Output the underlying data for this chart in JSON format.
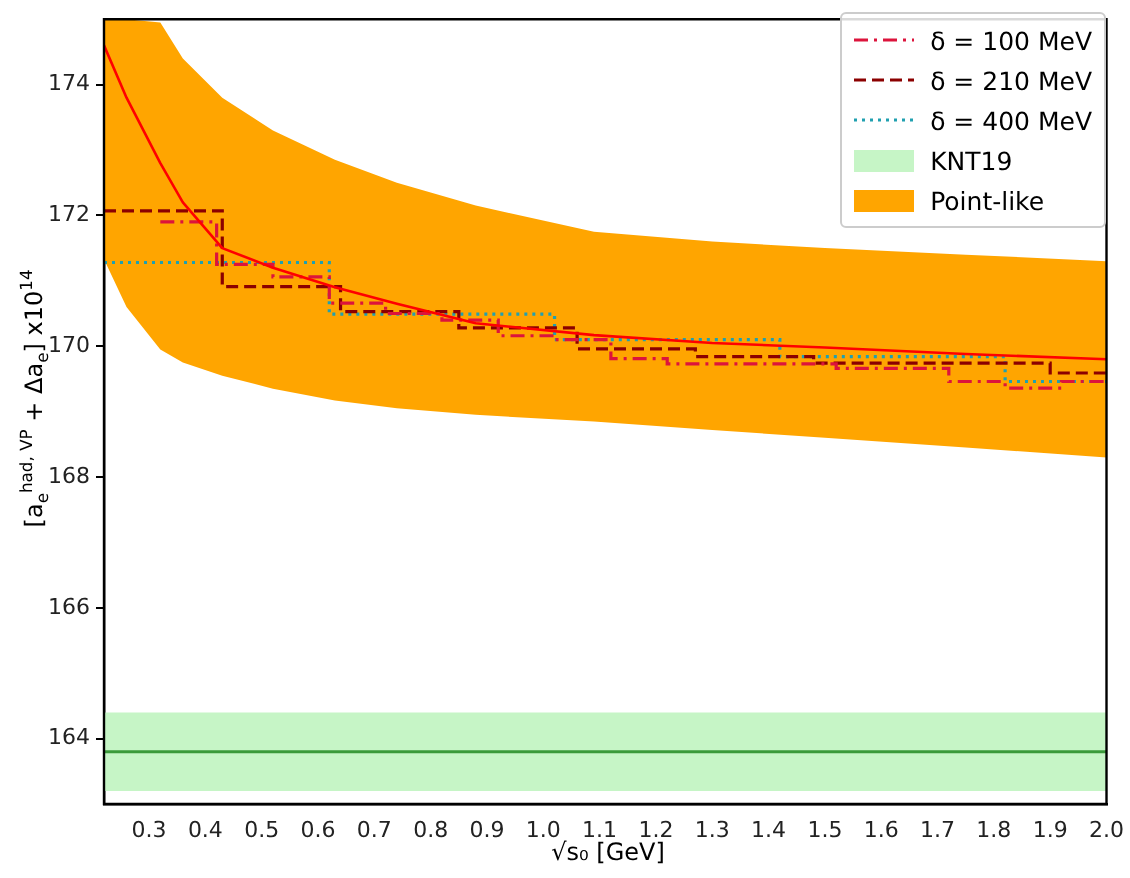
{
  "chart_data": {
    "type": "step",
    "xlabel": "√s₀ [GeV]",
    "ylabel": "[a$_{e}$$^{had, VP}$ + Δa$_{e}$] x10$^{14}$",
    "xlim": [
      0.22,
      2.0
    ],
    "ylim": [
      163,
      175
    ],
    "xticks": [
      0.3,
      0.4,
      0.5,
      0.6,
      0.7,
      0.8,
      0.9,
      {
        "value": 1,
        "label": "1.0"
      },
      1.1,
      1.2,
      1.3,
      1.4,
      1.5,
      1.6,
      1.7,
      1.8,
      1.9,
      {
        "value": 2,
        "label": "2.0"
      }
    ],
    "yticks": [
      164,
      166,
      168,
      170,
      172,
      174
    ],
    "grid": false,
    "legend": "top right",
    "series": [
      {
        "name": "Point-like",
        "type": "area",
        "color": "#ffa500",
        "x": [
          0.22,
          0.26,
          0.32,
          0.36,
          0.43,
          0.52,
          0.63,
          0.74,
          0.88,
          1.09,
          1.3,
          1.5,
          1.75,
          2.0
        ],
        "values": [
          null,
          null,
          null,
          null,
          null,
          null,
          null,
          null,
          null,
          null,
          null,
          null,
          null,
          null
        ],
        "lower": [
          171.33,
          170.6,
          169.95,
          169.75,
          169.55,
          169.35,
          169.17,
          169.05,
          168.95,
          168.85,
          168.72,
          168.6,
          168.45,
          168.3
        ],
        "upper": [
          175,
          175,
          174.95,
          174.4,
          173.8,
          173.3,
          172.85,
          172.5,
          172.15,
          171.75,
          171.6,
          171.5,
          171.4,
          171.3
        ]
      },
      {
        "type": "line",
        "color": "#ff0000",
        "line_style": "solid",
        "x": [
          0.22,
          0.26,
          0.32,
          0.36,
          0.43,
          0.52,
          0.63,
          0.74,
          0.88,
          1.09,
          1.3,
          1.5,
          1.75,
          2.0
        ],
        "values": [
          174.6,
          173.8,
          172.8,
          172.2,
          171.5,
          171.2,
          170.9,
          170.65,
          170.35,
          170.17,
          170.05,
          169.98,
          169.88,
          169.8
        ]
      },
      {
        "name": "δ = 100 MeV",
        "color": "#dc143c",
        "line_style": "dashdot",
        "x": [
          0.32,
          0.42,
          0.52,
          0.62,
          0.72,
          0.82,
          0.92,
          1.02,
          1.12,
          1.22,
          1.32,
          1.42,
          1.52,
          1.62,
          1.72,
          1.82,
          1.92,
          2.0
        ],
        "values": [
          171.9,
          171.25,
          171.06,
          170.66,
          170.5,
          170.4,
          170.16,
          170.1,
          169.81,
          169.73,
          169.73,
          169.73,
          169.66,
          169.66,
          169.46,
          169.36,
          169.46,
          169.46
        ]
      },
      {
        "name": "δ = 210 MeV",
        "color": "#8b0000",
        "line_style": "dashed",
        "x": [
          0.22,
          0.43,
          0.64,
          0.85,
          1.06,
          1.27,
          1.48,
          1.69,
          1.9,
          2.0
        ],
        "values": [
          172.07,
          170.91,
          170.53,
          170.28,
          169.96,
          169.84,
          169.74,
          169.74,
          169.59,
          169.59
        ]
      },
      {
        "name": "δ = 400 MeV",
        "color": "#20a0b0",
        "line_style": "dotted",
        "x": [
          0.22,
          0.62,
          1.02,
          1.42,
          1.82,
          2.0
        ],
        "values": [
          171.28,
          170.49,
          170.1,
          169.84,
          169.46,
          169.46
        ]
      }
    ],
    "bands": [
      {
        "axis": "y",
        "from": 163.2,
        "to": 164.4,
        "label": "KNT19",
        "color": "#c6f5c6"
      }
    ],
    "ref_lines": [
      {
        "axis": "y",
        "value": 163.8,
        "color": "#3a9a3a"
      }
    ]
  }
}
